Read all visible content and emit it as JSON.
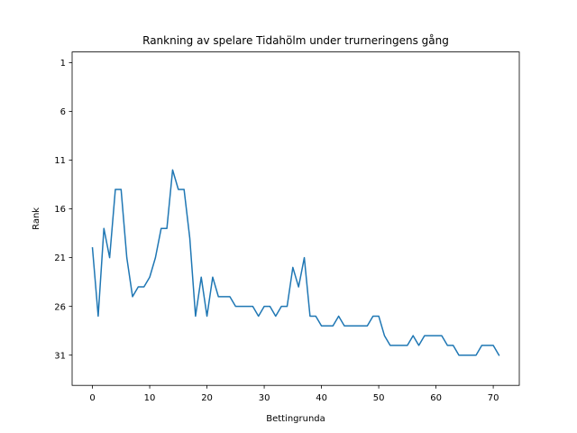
{
  "chart_data": {
    "type": "line",
    "title": "Rankning av spelare Tidahölm under trurneringens gång",
    "xlabel": "Bettingrunda",
    "ylabel": "Rank",
    "xlim": [
      -3.55,
      74.55
    ],
    "ylim": [
      34.1,
      -0.1
    ],
    "y_inverted": true,
    "xticks": [
      0,
      10,
      20,
      30,
      40,
      50,
      60,
      70
    ],
    "yticks": [
      1,
      6,
      11,
      16,
      21,
      26,
      31
    ],
    "grid": false,
    "line_color": "#1f77b4",
    "series": [
      {
        "x": [
          0,
          1,
          2,
          3,
          4,
          5,
          6,
          7,
          8,
          9,
          10,
          11,
          12,
          13,
          14,
          15,
          16,
          17,
          18,
          19,
          20,
          21,
          22,
          23,
          24,
          25,
          26,
          27,
          28,
          29,
          30,
          31,
          32,
          33,
          34,
          35,
          36,
          37,
          38,
          39,
          40,
          41,
          42,
          43,
          44,
          45,
          46,
          47,
          48,
          49,
          50,
          51,
          52,
          53,
          54,
          55,
          56,
          57,
          58,
          59,
          60,
          61,
          62,
          63,
          64,
          65,
          66,
          67,
          68,
          69,
          70,
          71
        ],
        "values": [
          20,
          27,
          18,
          21,
          14,
          14,
          21,
          25,
          24,
          24,
          23,
          21,
          18,
          18,
          12,
          14,
          14,
          19,
          27,
          23,
          27,
          23,
          25,
          25,
          25,
          26,
          26,
          26,
          26,
          27,
          26,
          26,
          27,
          26,
          26,
          22,
          24,
          21,
          27,
          27,
          28,
          28,
          28,
          27,
          28,
          28,
          28,
          28,
          28,
          27,
          27,
          29,
          30,
          30,
          30,
          30,
          29,
          30,
          29,
          29,
          29,
          29,
          30,
          30,
          31,
          31,
          31,
          31,
          30,
          30,
          30,
          31
        ]
      }
    ]
  }
}
